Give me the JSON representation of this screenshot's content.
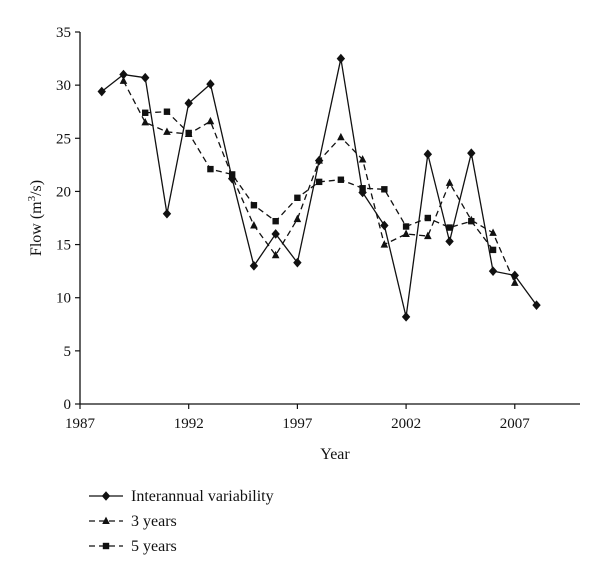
{
  "chart_data": {
    "type": "line",
    "title": "",
    "xlabel": "Year",
    "ylabel": "Flow (m³/s)",
    "ylabel_parts": {
      "before": "Flow (m",
      "sup": "3",
      "after": "/s)"
    },
    "xlim": [
      1987,
      2010
    ],
    "ylim": [
      0,
      35
    ],
    "xticks": [
      1987,
      1992,
      1997,
      2002,
      2007
    ],
    "yticks": [
      0,
      5,
      10,
      15,
      20,
      25,
      30,
      35
    ],
    "grid": false,
    "legend_position": "bottom",
    "series": [
      {
        "name": "Interannual variability",
        "style": "solid",
        "marker": "diamond",
        "x": [
          1988,
          1989,
          1990,
          1991,
          1992,
          1993,
          1994,
          1995,
          1996,
          1997,
          1998,
          1999,
          2000,
          2001,
          2002,
          2003,
          2004,
          2005,
          2006,
          2007,
          2008
        ],
        "y": [
          29.4,
          31.0,
          30.7,
          17.9,
          28.3,
          30.1,
          21.2,
          13.0,
          16.0,
          13.3,
          22.9,
          32.5,
          19.9,
          16.8,
          8.2,
          23.5,
          15.3,
          23.6,
          12.5,
          12.1,
          9.3
        ]
      },
      {
        "name": "3 years",
        "style": "dashed",
        "marker": "triangle",
        "x": [
          1989,
          1990,
          1991,
          1992,
          1993,
          1994,
          1995,
          1996,
          1997,
          1998,
          1999,
          2000,
          2001,
          2002,
          2003,
          2004,
          2005,
          2006,
          2007
        ],
        "y": [
          30.4,
          26.5,
          25.6,
          25.4,
          26.6,
          21.4,
          16.8,
          14.0,
          17.4,
          22.9,
          25.1,
          23.0,
          15.0,
          16.0,
          15.8,
          20.8,
          17.3,
          16.1,
          11.4
        ]
      },
      {
        "name": "5 years",
        "style": "dashed",
        "marker": "square",
        "x": [
          1990,
          1991,
          1992,
          1993,
          1994,
          1995,
          1996,
          1997,
          1998,
          1999,
          2000,
          2001,
          2002,
          2003,
          2004,
          2005,
          2006
        ],
        "y": [
          27.4,
          27.5,
          25.5,
          22.1,
          21.6,
          18.7,
          17.2,
          19.4,
          20.9,
          21.1,
          20.3,
          20.2,
          16.7,
          17.5,
          16.6,
          17.2,
          14.5
        ]
      }
    ]
  }
}
